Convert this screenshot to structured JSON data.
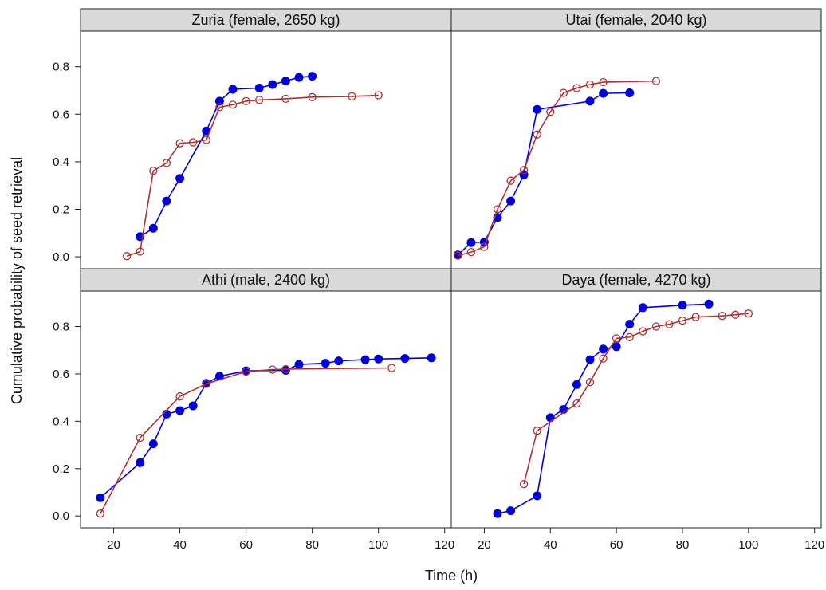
{
  "chart_data": [
    {
      "type": "line",
      "title": "Zuria (female, 2650 kg)",
      "xlim": [
        10,
        122
      ],
      "ylim": [
        -0.05,
        0.95
      ],
      "series": [
        {
          "color": "#0000dd",
          "marker": "filled-circle",
          "x": [
            28,
            32,
            36,
            40,
            48,
            52,
            56,
            64,
            68,
            72,
            76,
            80
          ],
          "y": [
            0.085,
            0.12,
            0.235,
            0.33,
            0.53,
            0.655,
            0.705,
            0.71,
            0.725,
            0.74,
            0.755,
            0.76
          ]
        },
        {
          "color": "#b03030",
          "marker": "open-circle",
          "x": [
            24,
            28,
            32,
            36,
            40,
            44,
            48,
            52,
            56,
            60,
            64,
            72,
            80,
            92,
            100
          ],
          "y": [
            0.003,
            0.022,
            0.362,
            0.395,
            0.478,
            0.482,
            0.492,
            0.63,
            0.64,
            0.655,
            0.66,
            0.665,
            0.672,
            0.675,
            0.68
          ]
        }
      ]
    },
    {
      "type": "line",
      "title": "Utai (female, 2040 kg)",
      "xlim": [
        10,
        122
      ],
      "ylim": [
        -0.05,
        0.95
      ],
      "series": [
        {
          "color": "#0000dd",
          "marker": "filled-circle",
          "x": [
            12,
            16,
            20,
            24,
            28,
            32,
            36,
            52,
            56,
            64
          ],
          "y": [
            0.008,
            0.06,
            0.062,
            0.165,
            0.235,
            0.345,
            0.62,
            0.655,
            0.688,
            0.69
          ]
        },
        {
          "color": "#b03030",
          "marker": "open-circle",
          "x": [
            12,
            16,
            20,
            24,
            28,
            32,
            36,
            40,
            44,
            48,
            52,
            56,
            72
          ],
          "y": [
            0.005,
            0.02,
            0.042,
            0.2,
            0.32,
            0.365,
            0.515,
            0.61,
            0.69,
            0.71,
            0.725,
            0.735,
            0.74
          ]
        }
      ]
    },
    {
      "type": "line",
      "title": "Athi (male, 2400 kg)",
      "xlim": [
        10,
        122
      ],
      "ylim": [
        -0.05,
        0.95
      ],
      "series": [
        {
          "color": "#0000dd",
          "marker": "filled-circle",
          "x": [
            16,
            28,
            32,
            36,
            40,
            44,
            48,
            52,
            60,
            72,
            76,
            84,
            88,
            96,
            100,
            108,
            116
          ],
          "y": [
            0.077,
            0.225,
            0.305,
            0.43,
            0.445,
            0.465,
            0.56,
            0.59,
            0.613,
            0.615,
            0.64,
            0.645,
            0.655,
            0.66,
            0.663,
            0.665,
            0.668
          ]
        },
        {
          "color": "#b03030",
          "marker": "open-circle",
          "x": [
            16,
            28,
            40,
            48,
            60,
            68,
            72,
            104
          ],
          "y": [
            0.01,
            0.33,
            0.505,
            0.558,
            0.61,
            0.618,
            0.62,
            0.625
          ]
        }
      ]
    },
    {
      "type": "line",
      "title": "Daya (female, 4270 kg)",
      "xlim": [
        10,
        122
      ],
      "ylim": [
        -0.05,
        0.95
      ],
      "series": [
        {
          "color": "#0000dd",
          "marker": "filled-circle",
          "x": [
            24,
            28,
            36,
            40,
            44,
            48,
            52,
            56,
            60,
            64,
            68,
            80,
            88
          ],
          "y": [
            0.01,
            0.022,
            0.085,
            0.415,
            0.45,
            0.555,
            0.66,
            0.705,
            0.715,
            0.81,
            0.88,
            0.89,
            0.895
          ]
        },
        {
          "color": "#b03030",
          "marker": "open-circle",
          "x": [
            32,
            36,
            48,
            52,
            56,
            60,
            64,
            68,
            72,
            76,
            80,
            84,
            92,
            96,
            100
          ],
          "y": [
            0.135,
            0.36,
            0.475,
            0.565,
            0.665,
            0.75,
            0.755,
            0.78,
            0.8,
            0.81,
            0.825,
            0.84,
            0.845,
            0.85,
            0.855
          ]
        }
      ]
    }
  ],
  "axes": {
    "xlabel": "Time (h)",
    "ylabel": "Cumulative probability of seed retrieval",
    "xticks": [
      20,
      40,
      60,
      80,
      100,
      120
    ],
    "yticks": [
      0.0,
      0.2,
      0.4,
      0.6,
      0.8
    ],
    "ytick_labels": [
      "0.0",
      "0.2",
      "0.4",
      "0.6",
      "0.8"
    ]
  },
  "style": {
    "strip_color": "#d9d9d9",
    "border_color": "#222222"
  }
}
